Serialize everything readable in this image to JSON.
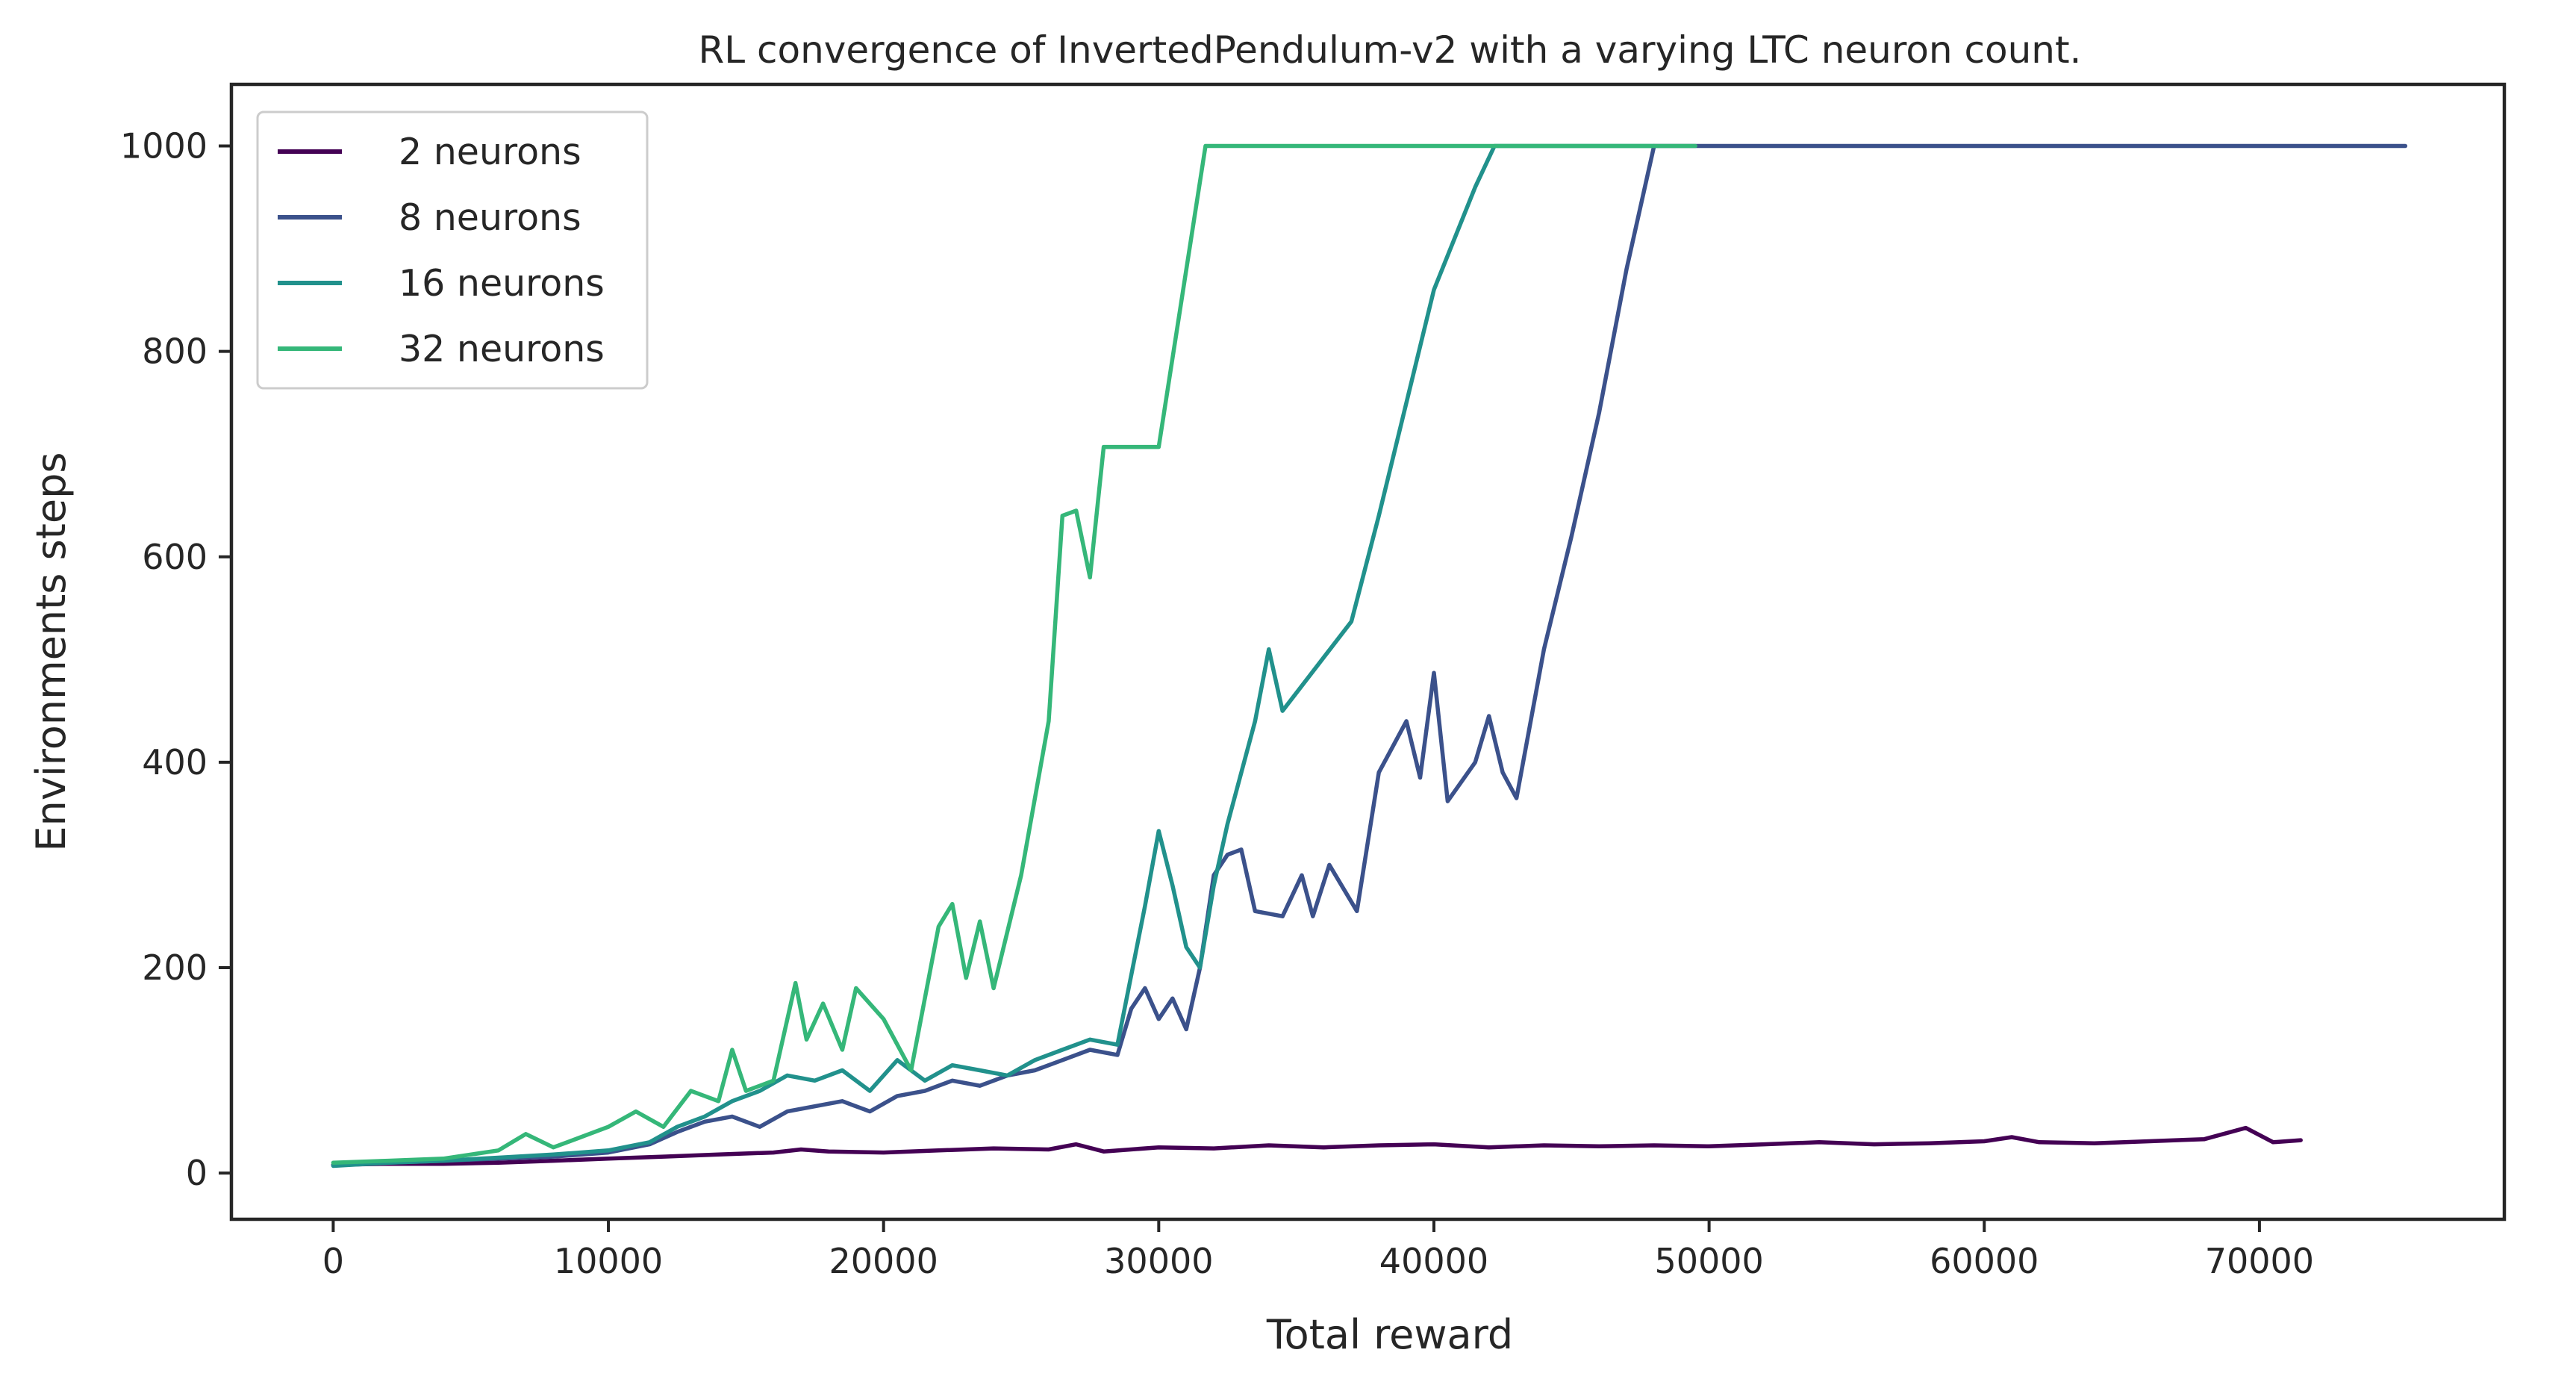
{
  "chart_data": {
    "type": "line",
    "title": "RL convergence of InvertedPendulum-v2 with a varying LTC neuron count.",
    "xlabel": "Total reward",
    "ylabel": "Environments steps",
    "xlim": [
      -3700,
      78900
    ],
    "ylim": [
      -45,
      1060
    ],
    "xticks": [
      0,
      10000,
      20000,
      30000,
      40000,
      50000,
      60000,
      70000
    ],
    "xtick_labels": [
      "0",
      "10000",
      "20000",
      "30000",
      "40000",
      "50000",
      "60000",
      "70000"
    ],
    "yticks": [
      0,
      200,
      400,
      600,
      800,
      1000
    ],
    "ytick_labels": [
      "0",
      "200",
      "400",
      "600",
      "800",
      "1000"
    ],
    "grid": false,
    "legend_position": "top-left",
    "series": [
      {
        "name": "2 neurons",
        "color": "#440154",
        "x": [
          0,
          2000,
          4000,
          6000,
          8000,
          10000,
          12000,
          14000,
          16000,
          17000,
          18000,
          20000,
          22000,
          24000,
          26000,
          27000,
          28000,
          30000,
          32000,
          34000,
          36000,
          38000,
          40000,
          42000,
          44000,
          46000,
          48000,
          50000,
          52000,
          54000,
          56000,
          58000,
          60000,
          61000,
          62000,
          64000,
          66000,
          68000,
          69500,
          70500,
          71500
        ],
        "y": [
          8,
          9,
          9,
          10,
          12,
          14,
          16,
          18,
          20,
          23,
          21,
          20,
          22,
          24,
          23,
          28,
          21,
          25,
          24,
          27,
          25,
          27,
          28,
          25,
          27,
          26,
          27,
          26,
          28,
          30,
          28,
          29,
          31,
          35,
          30,
          29,
          31,
          33,
          44,
          30,
          32
        ]
      },
      {
        "name": "8 neurons",
        "color": "#3b518b",
        "x": [
          0,
          2000,
          4000,
          6000,
          8000,
          10000,
          11500,
          12500,
          13500,
          14500,
          15500,
          16500,
          17500,
          18500,
          19500,
          20500,
          21500,
          22500,
          23500,
          24500,
          25500,
          26500,
          27500,
          28500,
          29000,
          29500,
          30000,
          30500,
          31000,
          31500,
          32000,
          32500,
          33000,
          33500,
          34500,
          35200,
          35600,
          36200,
          37200,
          38000,
          39000,
          39500,
          40000,
          40500,
          41500,
          42000,
          42500,
          43000,
          44000,
          45000,
          46000,
          47000,
          48000,
          50000,
          60000,
          75300
        ],
        "y": [
          8,
          10,
          12,
          14,
          16,
          20,
          28,
          40,
          50,
          55,
          45,
          60,
          65,
          70,
          60,
          75,
          80,
          90,
          85,
          95,
          100,
          110,
          120,
          115,
          160,
          180,
          150,
          170,
          140,
          200,
          290,
          310,
          315,
          255,
          250,
          290,
          250,
          300,
          255,
          390,
          440,
          385,
          487,
          362,
          400,
          445,
          390,
          365,
          510,
          620,
          740,
          880,
          1000,
          1000,
          1000,
          1000
        ]
      },
      {
        "name": "16 neurons",
        "color": "#21918c",
        "x": [
          0,
          2000,
          4000,
          6000,
          8000,
          10000,
          11500,
          12500,
          13500,
          14500,
          15500,
          16500,
          17500,
          18500,
          19500,
          20500,
          21500,
          22500,
          23500,
          24500,
          25500,
          26500,
          27500,
          28500,
          29500,
          30000,
          30500,
          31000,
          31500,
          32000,
          32500,
          33500,
          34000,
          34500,
          37000,
          38000,
          40000,
          41500,
          42200,
          44000,
          48000
        ],
        "y": [
          7,
          10,
          12,
          15,
          18,
          22,
          30,
          45,
          55,
          70,
          80,
          95,
          90,
          100,
          80,
          110,
          90,
          105,
          100,
          95,
          110,
          120,
          130,
          125,
          260,
          333,
          280,
          220,
          200,
          280,
          340,
          440,
          510,
          450,
          537,
          640,
          860,
          960,
          1000,
          1000,
          1000
        ]
      },
      {
        "name": "32 neurons",
        "color": "#35b779",
        "x": [
          0,
          2000,
          4000,
          6000,
          7000,
          8000,
          9000,
          10000,
          11000,
          12000,
          13000,
          14000,
          14500,
          15000,
          16000,
          16800,
          17200,
          17800,
          18500,
          19000,
          20000,
          21000,
          22000,
          22500,
          23000,
          23500,
          24000,
          25000,
          26000,
          26500,
          27000,
          27500,
          28000,
          30000,
          31700,
          40000,
          49500
        ],
        "y": [
          10,
          12,
          14,
          22,
          38,
          25,
          35,
          45,
          60,
          45,
          80,
          70,
          120,
          80,
          90,
          185,
          130,
          165,
          120,
          180,
          150,
          100,
          240,
          262,
          190,
          245,
          180,
          290,
          440,
          640,
          645,
          580,
          707,
          707,
          1000,
          1000,
          1000
        ]
      }
    ]
  }
}
